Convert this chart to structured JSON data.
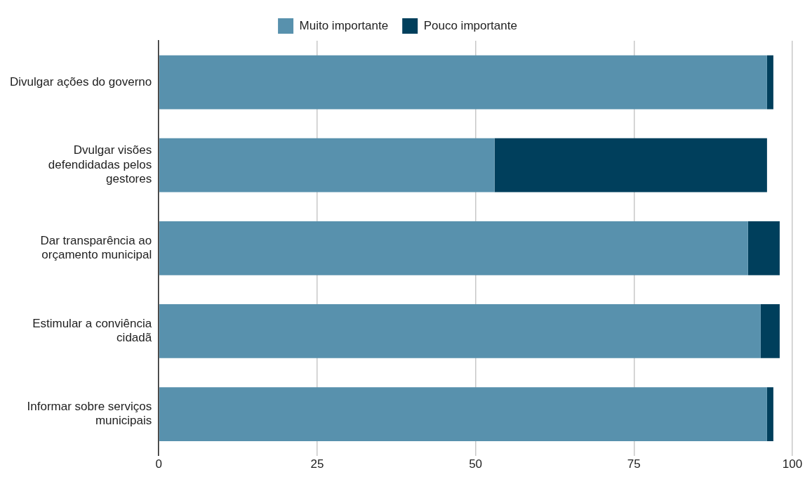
{
  "chart_data": {
    "type": "bar",
    "orientation": "horizontal",
    "stacked": true,
    "categories": [
      "Divulgar ações do governo",
      "Dvulgar visões defendidadas pelos gestores",
      "Dar transparência ao orçamento municipal",
      "Estimular a conviência cidadã",
      "Informar sobre serviços municipais"
    ],
    "series": [
      {
        "name": "Muito importante",
        "color": "#5891ad",
        "values": [
          96,
          53,
          93,
          95,
          96
        ]
      },
      {
        "name": "Pouco importante",
        "color": "#003f5c",
        "values": [
          1,
          43,
          5,
          3,
          1
        ]
      }
    ],
    "xlim": [
      0,
      100
    ],
    "xticks": [
      0,
      25,
      50,
      75,
      100
    ],
    "grid": "x",
    "legend": "top"
  }
}
